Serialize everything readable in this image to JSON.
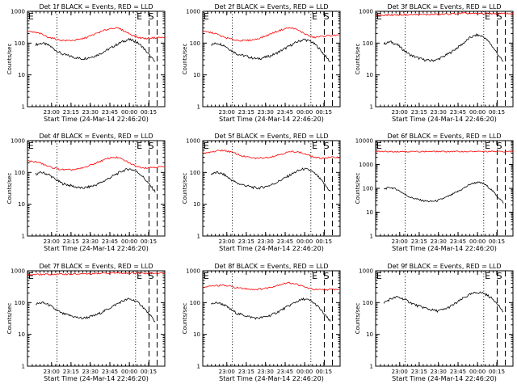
{
  "figure": {
    "ylabel": "Counts/sec",
    "xlabel": "Start Time (24-Mar-14 22:46:20)",
    "xticks": [
      "23:00",
      "23:15",
      "23:30",
      "23:45",
      "00:00",
      "00:15"
    ],
    "yticks": [
      "1",
      "10",
      "100",
      "1000"
    ],
    "yticks_10k": [
      "1",
      "10",
      "100",
      "1000",
      "10000"
    ],
    "colors": {
      "events": "#000000",
      "lld": "#ff0000"
    }
  },
  "chart_data": [
    {
      "type": "line",
      "title": "Det 1f BLACK = Events, RED = LLD",
      "marks": [
        "E",
        "E",
        "S"
      ],
      "ylim": [
        1,
        1000
      ],
      "log_y": true,
      "series": [
        {
          "name": "Events",
          "start": 0.06,
          "end": 0.93,
          "values": [
            90,
            100,
            85,
            60,
            45,
            40,
            35,
            32,
            35,
            40,
            50,
            65,
            85,
            110,
            130,
            115,
            80,
            45,
            25
          ]
        },
        {
          "name": "LLD",
          "start": -0.05,
          "end": 1.0,
          "values": [
            230,
            230,
            220,
            200,
            160,
            140,
            125,
            120,
            122,
            130,
            150,
            180,
            220,
            260,
            300,
            290,
            230,
            180,
            150,
            140,
            145,
            150,
            150
          ]
        }
      ]
    },
    {
      "type": "line",
      "title": "Det 2f BLACK = Events, RED = LLD",
      "marks": [
        "E",
        "E",
        "S"
      ],
      "ylim": [
        1,
        1000
      ],
      "log_y": true,
      "series": [
        {
          "name": "Events",
          "start": 0.06,
          "end": 0.93,
          "values": [
            90,
            100,
            85,
            60,
            45,
            40,
            35,
            32,
            35,
            40,
            50,
            65,
            85,
            110,
            130,
            115,
            80,
            45,
            25
          ]
        },
        {
          "name": "LLD",
          "start": -0.05,
          "end": 1.0,
          "values": [
            230,
            230,
            220,
            200,
            160,
            140,
            125,
            120,
            122,
            130,
            150,
            180,
            220,
            260,
            300,
            290,
            230,
            180,
            150,
            160,
            170,
            175,
            175
          ]
        }
      ]
    },
    {
      "type": "line",
      "title": "Det 3f BLACK = Events, RED = LLD",
      "marks": [
        "E",
        "E",
        "S"
      ],
      "ylim": [
        1,
        1000
      ],
      "log_y": true,
      "series": [
        {
          "name": "Events",
          "start": 0.06,
          "end": 0.93,
          "values": [
            95,
            110,
            90,
            60,
            42,
            35,
            30,
            28,
            30,
            38,
            50,
            70,
            100,
            150,
            180,
            160,
            100,
            50,
            25
          ]
        },
        {
          "name": "LLD",
          "start": -0.05,
          "end": 1.0,
          "values": [
            750,
            760,
            760,
            770,
            770,
            780,
            780,
            790,
            790,
            790,
            800,
            800,
            820,
            840,
            860,
            860,
            850,
            850,
            850,
            850,
            850,
            850,
            850
          ]
        }
      ]
    },
    {
      "type": "line",
      "title": "Det 4f BLACK = Events, RED = LLD",
      "marks": [
        "E",
        "E",
        "S"
      ],
      "ylim": [
        1,
        1000
      ],
      "log_y": true,
      "series": [
        {
          "name": "Events",
          "start": 0.06,
          "end": 0.93,
          "values": [
            90,
            100,
            85,
            60,
            45,
            40,
            35,
            32,
            35,
            40,
            50,
            65,
            85,
            110,
            130,
            115,
            80,
            45,
            25
          ]
        },
        {
          "name": "LLD",
          "start": -0.05,
          "end": 1.0,
          "values": [
            230,
            230,
            220,
            200,
            160,
            140,
            125,
            120,
            122,
            130,
            150,
            180,
            220,
            260,
            300,
            290,
            230,
            180,
            150,
            140,
            145,
            150,
            150
          ]
        }
      ]
    },
    {
      "type": "line",
      "title": "Det 5f BLACK = Events, RED = LLD",
      "marks": [
        "E",
        "E",
        "S"
      ],
      "ylim": [
        1,
        1000
      ],
      "log_y": true,
      "series": [
        {
          "name": "Events",
          "start": 0.06,
          "end": 0.93,
          "values": [
            90,
            100,
            85,
            60,
            45,
            40,
            35,
            32,
            35,
            40,
            50,
            65,
            85,
            110,
            130,
            115,
            80,
            45,
            25
          ]
        },
        {
          "name": "LLD",
          "start": -0.05,
          "end": 1.0,
          "values": [
            350,
            380,
            420,
            470,
            500,
            460,
            400,
            330,
            300,
            280,
            285,
            300,
            330,
            380,
            430,
            460,
            420,
            360,
            300,
            280,
            290,
            300,
            300
          ]
        }
      ]
    },
    {
      "type": "line",
      "title": "Det 6f BLACK = Events, RED = LLD",
      "marks": [
        "E",
        "E",
        "S"
      ],
      "ylim": [
        1,
        10000
      ],
      "log_y": true,
      "series": [
        {
          "name": "Events",
          "start": 0.06,
          "end": 0.93,
          "values": [
            95,
            110,
            90,
            60,
            42,
            35,
            30,
            28,
            30,
            38,
            50,
            70,
            100,
            150,
            180,
            160,
            100,
            50,
            25
          ]
        },
        {
          "name": "LLD",
          "start": -0.05,
          "end": 1.0,
          "values": [
            3500,
            3500,
            3500,
            3500,
            3500,
            3500,
            3500,
            3500,
            3500,
            3500,
            3500,
            3500,
            3500,
            3500,
            3500,
            3500,
            3500,
            3500,
            3500,
            3500,
            3500,
            3500,
            3500
          ]
        }
      ]
    },
    {
      "type": "line",
      "title": "Det 7f BLACK = Events, RED = LLD",
      "marks": [
        "E",
        "E",
        "S"
      ],
      "ylim": [
        1,
        1000
      ],
      "log_y": true,
      "series": [
        {
          "name": "Events",
          "start": 0.06,
          "end": 0.93,
          "values": [
            90,
            100,
            85,
            60,
            45,
            40,
            35,
            32,
            35,
            40,
            50,
            65,
            85,
            110,
            130,
            115,
            80,
            45,
            25
          ]
        },
        {
          "name": "LLD",
          "start": -0.05,
          "end": 1.0,
          "values": [
            750,
            760,
            760,
            770,
            770,
            780,
            780,
            790,
            790,
            790,
            800,
            800,
            820,
            840,
            860,
            860,
            850,
            850,
            850,
            850,
            850,
            850,
            850
          ]
        }
      ]
    },
    {
      "type": "line",
      "title": "Det 8f BLACK = Events, RED = LLD",
      "marks": [
        "E",
        "E",
        "S"
      ],
      "ylim": [
        1,
        1000
      ],
      "log_y": true,
      "series": [
        {
          "name": "Events",
          "start": 0.06,
          "end": 0.93,
          "values": [
            90,
            100,
            85,
            60,
            45,
            40,
            35,
            32,
            35,
            40,
            50,
            65,
            85,
            110,
            130,
            115,
            80,
            45,
            25
          ]
        },
        {
          "name": "LLD",
          "start": -0.05,
          "end": 1.0,
          "values": [
            280,
            300,
            320,
            340,
            350,
            330,
            300,
            280,
            270,
            260,
            270,
            290,
            330,
            380,
            420,
            400,
            340,
            290,
            260,
            250,
            255,
            260,
            260
          ]
        }
      ]
    },
    {
      "type": "line",
      "title": "Det 9f BLACK = Events, RED = LLD",
      "marks": [
        "E",
        "E",
        "S"
      ],
      "ylim": [
        1,
        1000
      ],
      "log_y": true,
      "series": [
        {
          "name": "Events",
          "start": 0.06,
          "end": 0.93,
          "values": [
            100,
            130,
            150,
            130,
            100,
            80,
            70,
            60,
            55,
            60,
            75,
            100,
            140,
            180,
            210,
            200,
            150,
            100,
            50
          ]
        }
      ]
    }
  ]
}
